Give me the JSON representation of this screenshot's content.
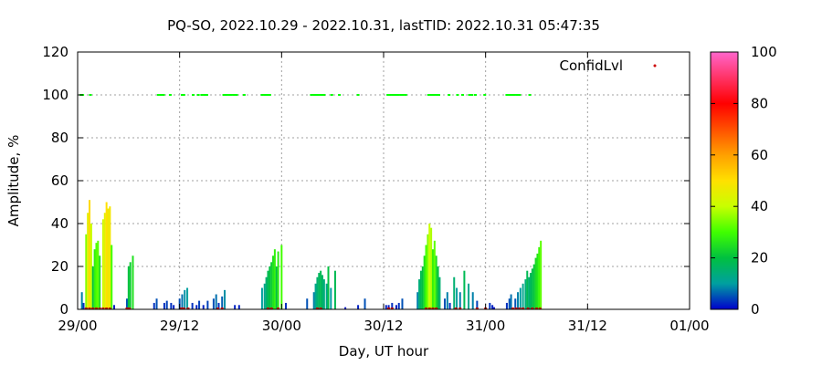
{
  "chart_data": {
    "type": "bar",
    "title": "PQ-SO, 2022.10.29 - 2022.10.31, lastTID: 2022.10.31 05:47:35",
    "xlabel": "Day, UT hour",
    "ylabel": "Amplitude, %",
    "xlim": [
      0,
      72
    ],
    "ylim": [
      0,
      120
    ],
    "x_ticks": [
      {
        "hour": 0,
        "label": "29/00"
      },
      {
        "hour": 12,
        "label": "29/12"
      },
      {
        "hour": 24,
        "label": "30/00"
      },
      {
        "hour": 36,
        "label": "30/12"
      },
      {
        "hour": 48,
        "label": "31/00"
      },
      {
        "hour": 60,
        "label": "31/12"
      },
      {
        "hour": 72,
        "label": "01/00"
      }
    ],
    "y_ticks": [
      0,
      20,
      40,
      60,
      80,
      100,
      120
    ],
    "grid": true,
    "legend_placement": "top-right",
    "colorbar": {
      "range": [
        0,
        100
      ],
      "ticks": [
        0,
        20,
        40,
        60,
        80,
        100
      ]
    },
    "series": [
      {
        "name": "Amplitude",
        "color_by_value": true,
        "points": [
          [
            0.5,
            8
          ],
          [
            0.7,
            3
          ],
          [
            1.0,
            35
          ],
          [
            1.2,
            45
          ],
          [
            1.4,
            51
          ],
          [
            1.6,
            40
          ],
          [
            1.8,
            20
          ],
          [
            2.0,
            28
          ],
          [
            2.2,
            31
          ],
          [
            2.4,
            32
          ],
          [
            2.6,
            25
          ],
          [
            3.0,
            42
          ],
          [
            3.2,
            45
          ],
          [
            3.4,
            50
          ],
          [
            3.6,
            47
          ],
          [
            3.8,
            48
          ],
          [
            4.0,
            30
          ],
          [
            4.3,
            2
          ],
          [
            5.8,
            5
          ],
          [
            6.0,
            20
          ],
          [
            6.2,
            22
          ],
          [
            6.5,
            25
          ],
          [
            9.0,
            3
          ],
          [
            9.3,
            5
          ],
          [
            10.2,
            3
          ],
          [
            10.5,
            4
          ],
          [
            11.0,
            3
          ],
          [
            11.3,
            2
          ],
          [
            12.0,
            5
          ],
          [
            12.3,
            7
          ],
          [
            12.6,
            9
          ],
          [
            12.9,
            10
          ],
          [
            13.5,
            3
          ],
          [
            14.0,
            2
          ],
          [
            14.3,
            4
          ],
          [
            14.8,
            2
          ],
          [
            15.3,
            4
          ],
          [
            16.0,
            5
          ],
          [
            16.3,
            7
          ],
          [
            16.6,
            3
          ],
          [
            17.0,
            6
          ],
          [
            17.3,
            9
          ],
          [
            18.5,
            2
          ],
          [
            19.0,
            2
          ],
          [
            21.7,
            10
          ],
          [
            22.0,
            12
          ],
          [
            22.2,
            15
          ],
          [
            22.4,
            18
          ],
          [
            22.6,
            20
          ],
          [
            22.8,
            22
          ],
          [
            23.0,
            25
          ],
          [
            23.2,
            28
          ],
          [
            23.4,
            20
          ],
          [
            23.6,
            27
          ],
          [
            24.0,
            30
          ],
          [
            24.5,
            3
          ],
          [
            27.0,
            5
          ],
          [
            27.8,
            8
          ],
          [
            28.0,
            12
          ],
          [
            28.2,
            15
          ],
          [
            28.4,
            17
          ],
          [
            28.6,
            18
          ],
          [
            28.8,
            16
          ],
          [
            29.0,
            14
          ],
          [
            29.3,
            12
          ],
          [
            29.5,
            20
          ],
          [
            29.8,
            10
          ],
          [
            30.3,
            18
          ],
          [
            31.5,
            1
          ],
          [
            33.0,
            2
          ],
          [
            33.8,
            5
          ],
          [
            36.3,
            2
          ],
          [
            36.6,
            2
          ],
          [
            37.0,
            3
          ],
          [
            37.5,
            2
          ],
          [
            37.8,
            3
          ],
          [
            38.2,
            5
          ],
          [
            40.0,
            8
          ],
          [
            40.2,
            14
          ],
          [
            40.4,
            18
          ],
          [
            40.6,
            20
          ],
          [
            40.8,
            25
          ],
          [
            41.0,
            30
          ],
          [
            41.2,
            35
          ],
          [
            41.4,
            40
          ],
          [
            41.6,
            38
          ],
          [
            41.8,
            28
          ],
          [
            42.0,
            32
          ],
          [
            42.2,
            25
          ],
          [
            42.4,
            20
          ],
          [
            42.6,
            15
          ],
          [
            43.2,
            5
          ],
          [
            43.5,
            8
          ],
          [
            43.8,
            3
          ],
          [
            44.3,
            15
          ],
          [
            44.6,
            10
          ],
          [
            45.0,
            8
          ],
          [
            45.5,
            18
          ],
          [
            46.0,
            12
          ],
          [
            46.5,
            8
          ],
          [
            47.0,
            4
          ],
          [
            48.5,
            3
          ],
          [
            48.8,
            2
          ],
          [
            49.0,
            1
          ],
          [
            50.5,
            3
          ],
          [
            50.8,
            5
          ],
          [
            51.0,
            7
          ],
          [
            51.5,
            5
          ],
          [
            51.8,
            8
          ],
          [
            52.1,
            10
          ],
          [
            52.4,
            12
          ],
          [
            52.7,
            14
          ],
          [
            52.9,
            18
          ],
          [
            53.1,
            15
          ],
          [
            53.3,
            17
          ],
          [
            53.5,
            19
          ],
          [
            53.7,
            21
          ],
          [
            53.9,
            24
          ],
          [
            54.1,
            26
          ],
          [
            54.3,
            29
          ],
          [
            54.5,
            32
          ]
        ]
      },
      {
        "name": "ConfidLvl",
        "color": "#00ff00",
        "points": [
          [
            0.4,
            100
          ],
          [
            0.6,
            100
          ],
          [
            1.5,
            100
          ],
          [
            9.5,
            100
          ],
          [
            9.8,
            100
          ],
          [
            10.1,
            100
          ],
          [
            10.9,
            100
          ],
          [
            12.3,
            100
          ],
          [
            12.5,
            100
          ],
          [
            13.6,
            100
          ],
          [
            14.2,
            100
          ],
          [
            14.6,
            100
          ],
          [
            14.9,
            100
          ],
          [
            15.2,
            100
          ],
          [
            17.2,
            100
          ],
          [
            17.5,
            100
          ],
          [
            17.8,
            100
          ],
          [
            18.1,
            100
          ],
          [
            18.4,
            100
          ],
          [
            18.7,
            100
          ],
          [
            19.6,
            100
          ],
          [
            21.7,
            100
          ],
          [
            22.0,
            100
          ],
          [
            22.3,
            100
          ],
          [
            22.6,
            100
          ],
          [
            27.5,
            100
          ],
          [
            27.8,
            100
          ],
          [
            28.1,
            100
          ],
          [
            28.4,
            100
          ],
          [
            28.7,
            100
          ],
          [
            29.0,
            100
          ],
          [
            29.9,
            100
          ],
          [
            30.8,
            100
          ],
          [
            33.0,
            100
          ],
          [
            36.5,
            100
          ],
          [
            36.8,
            100
          ],
          [
            37.1,
            100
          ],
          [
            37.4,
            100
          ],
          [
            37.7,
            100
          ],
          [
            38.0,
            100
          ],
          [
            38.3,
            100
          ],
          [
            38.6,
            100
          ],
          [
            41.3,
            100
          ],
          [
            41.6,
            100
          ],
          [
            41.9,
            100
          ],
          [
            42.2,
            100
          ],
          [
            42.5,
            100
          ],
          [
            43.7,
            100
          ],
          [
            44.7,
            100
          ],
          [
            45.3,
            100
          ],
          [
            46.1,
            100
          ],
          [
            46.4,
            100
          ],
          [
            46.8,
            100
          ],
          [
            47.9,
            100
          ],
          [
            50.5,
            100
          ],
          [
            50.8,
            100
          ],
          [
            51.1,
            100
          ],
          [
            51.4,
            100
          ],
          [
            51.7,
            100
          ],
          [
            52.0,
            100
          ],
          [
            53.2,
            100
          ]
        ]
      }
    ],
    "zero_markers": [
      1.0,
      1.4,
      1.8,
      2.2,
      2.6,
      3.0,
      3.4,
      3.8,
      5.8,
      6.1,
      12.2,
      12.5,
      13.0,
      16.5,
      17.0,
      22.4,
      22.8,
      23.6,
      28.2,
      28.6,
      36.6,
      37.0,
      41.0,
      41.4,
      41.8,
      42.2,
      44.5,
      45.0,
      47.0,
      48.0,
      51.2,
      51.6,
      52.0,
      52.4,
      53.0,
      53.5,
      54.0,
      54.4
    ]
  }
}
